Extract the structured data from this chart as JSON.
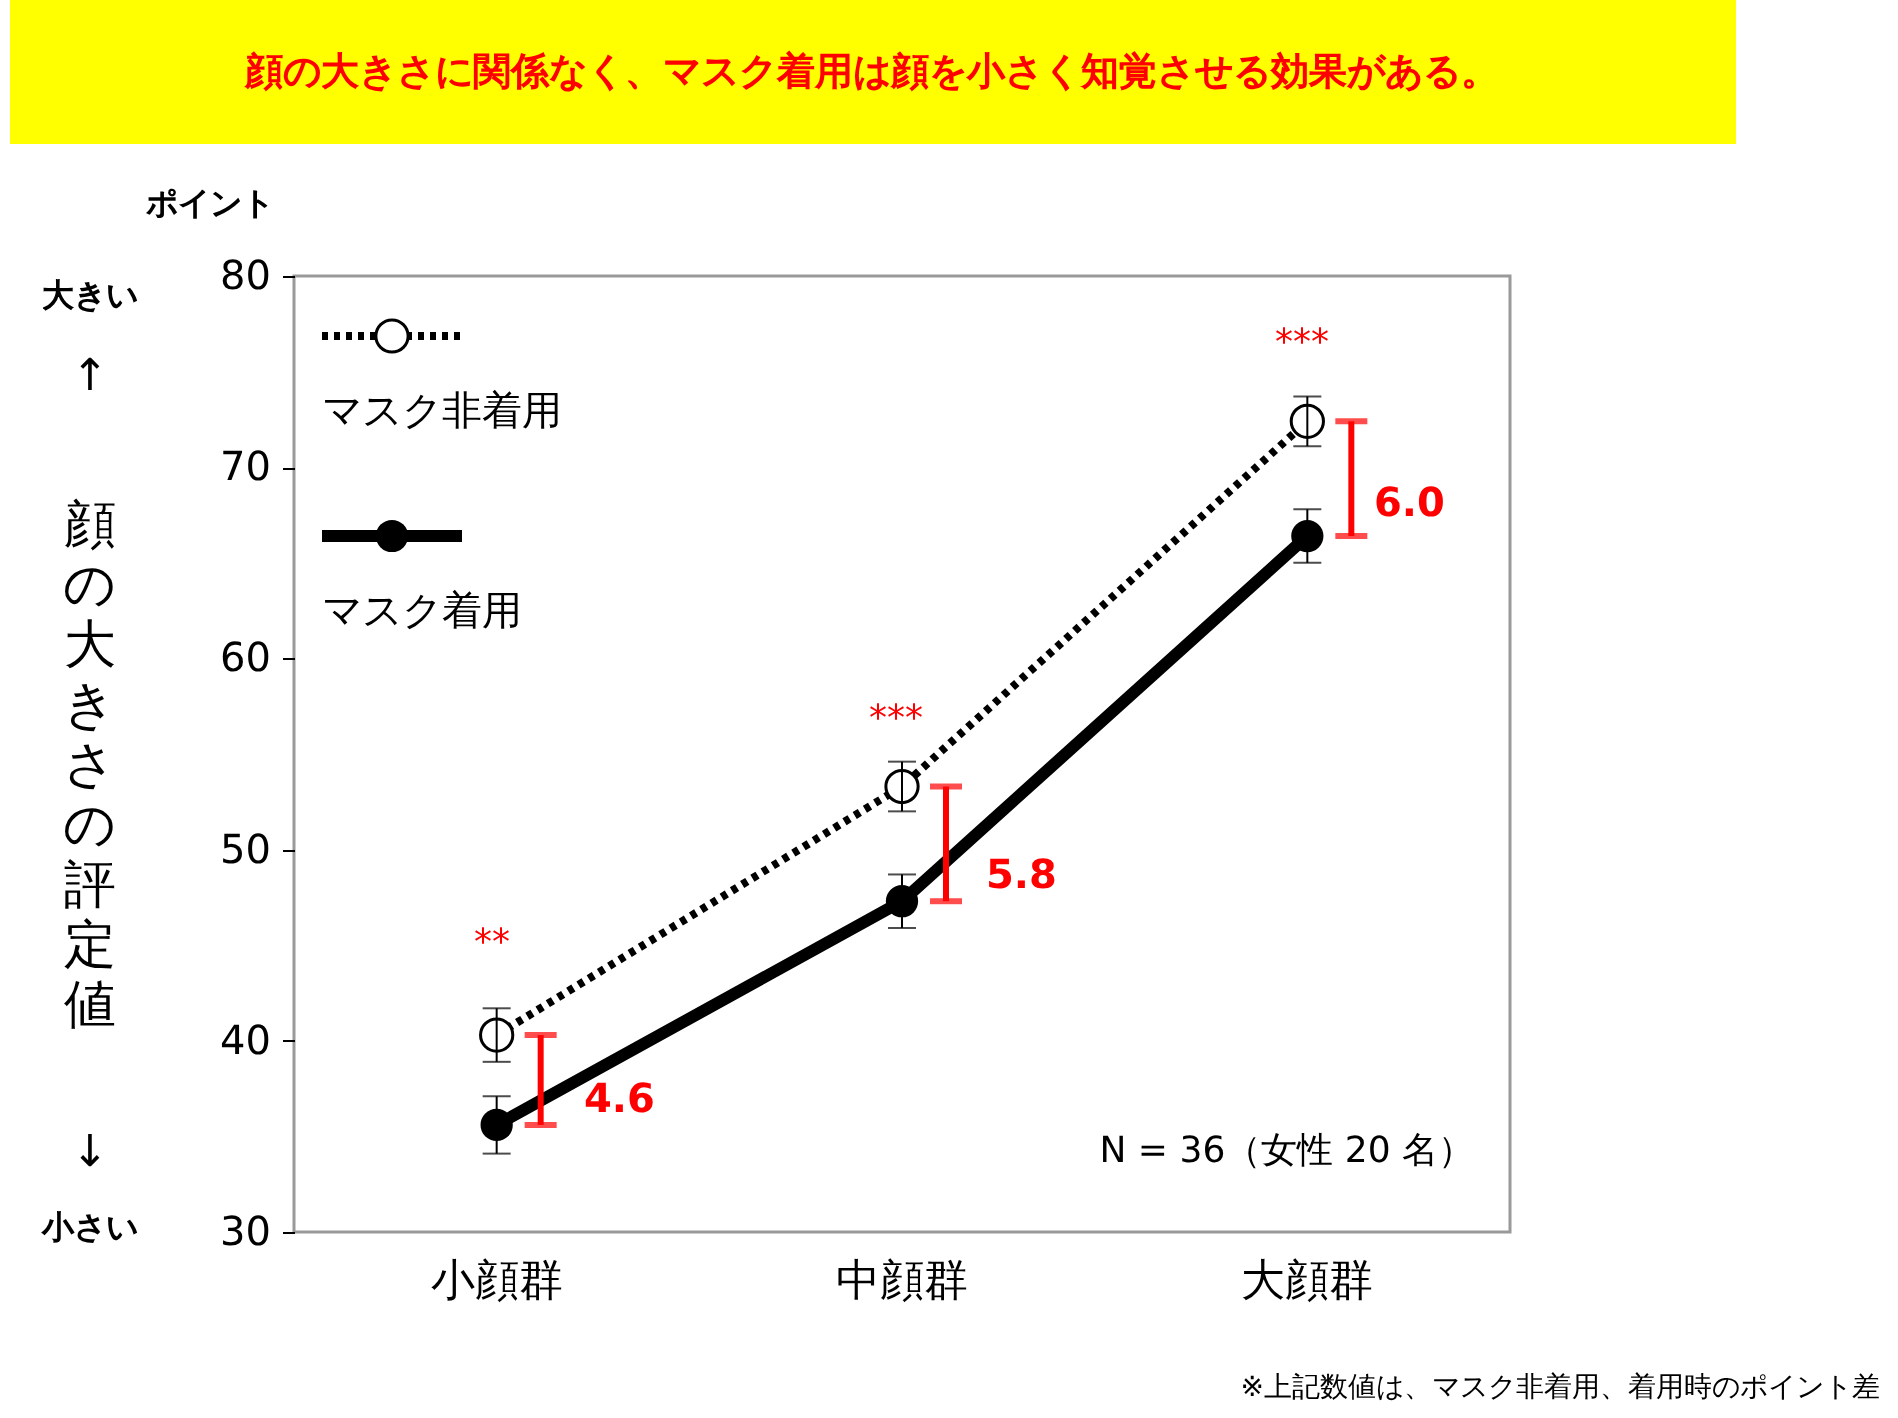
{
  "chart_data": {
    "type": "line",
    "title": "顔の大きさに関係なく、マスク着用は顔を小さく知覚させる効果がある。",
    "ylabel": "顔の大きさの評定値",
    "categories": [
      "小顔群",
      "中顔群",
      "大顔群"
    ],
    "series": [
      {
        "name": "マスク非着用",
        "color": "#000000",
        "line_style": "dotted",
        "values": [
          40.3,
          53.3,
          72.4
        ],
        "errors": [
          1.4,
          1.3,
          1.3
        ]
      },
      {
        "name": "マスク着用",
        "color": "#000000",
        "line_style": "solid",
        "values": [
          35.6,
          47.3,
          66.4
        ],
        "errors": [
          1.5,
          1.4,
          1.4
        ]
      }
    ],
    "ylim": [
      30,
      80
    ],
    "yticks": [
      30,
      40,
      50,
      60,
      70,
      80
    ],
    "grid": false,
    "legend": "top left",
    "marker": "circle",
    "annotations": [
      "4.6",
      "5.8",
      "6.0",
      "**",
      "***",
      "***",
      "ポイント",
      "大きい",
      "↑",
      "↓",
      "小さい",
      "N = 36（女性 20 名）",
      "※上記数値は、マスク非着用、着用時のポイント差"
    ]
  }
}
